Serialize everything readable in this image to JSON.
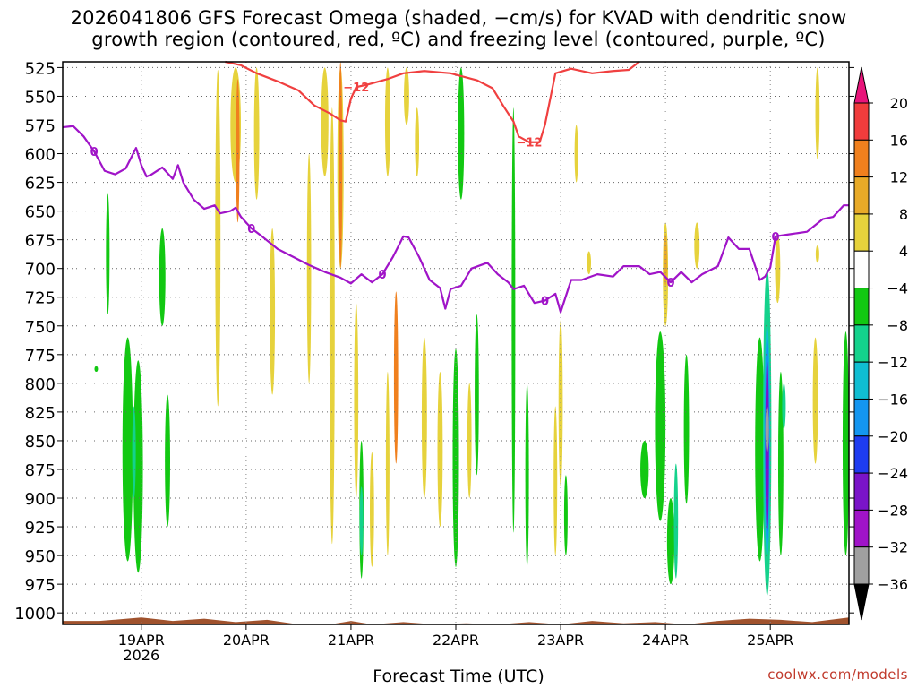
{
  "title": {
    "line1": "2026041806 GFS Forecast Omega (shaded, −cm/s) for KVAD with dendritic snow",
    "line2": "growth region (contoured, red, ºC) and freezing level (contoured, purple, ºC)"
  },
  "credit": "coolwx.com/models",
  "chart_data": {
    "type": "heatmap",
    "xlabel": "Forecast Time (UTC)",
    "x_ticks": [
      {
        "label": "19APR",
        "sublabel": "2026",
        "day": 1
      },
      {
        "label": "20APR",
        "sublabel": "",
        "day": 2
      },
      {
        "label": "21APR",
        "sublabel": "",
        "day": 3
      },
      {
        "label": "22APR",
        "sublabel": "",
        "day": 4
      },
      {
        "label": "23APR",
        "sublabel": "",
        "day": 5
      },
      {
        "label": "24APR",
        "sublabel": "",
        "day": 6
      },
      {
        "label": "25APR",
        "sublabel": "",
        "day": 7
      }
    ],
    "x_range_days": [
      0.25,
      7.75
    ],
    "y_axis": {
      "scale": "pressure (hPa)",
      "ticks": [
        525,
        550,
        575,
        600,
        625,
        650,
        675,
        700,
        725,
        750,
        775,
        800,
        825,
        850,
        875,
        900,
        925,
        950,
        975,
        1000
      ],
      "range": [
        520,
        1010
      ]
    },
    "grid": true,
    "colorbar": {
      "labels": [
        "20",
        "16",
        "12",
        "8",
        "4",
        "−4",
        "−8",
        "−12",
        "−16",
        "−20",
        "−24",
        "−28",
        "−32",
        "−36"
      ],
      "colors": [
        "#e8147a",
        "#f03c3c",
        "#f0801e",
        "#e8aa28",
        "#e6d23c",
        "#ffffff",
        "#12c812",
        "#14d28c",
        "#10bed2",
        "#1496f0",
        "#1e3cf0",
        "#7a14c8",
        "#a014c8",
        "#a0a0a0",
        "#000000"
      ]
    },
    "contour_labels": {
      "dgz": [
        "−12",
        "−12"
      ],
      "freezing": [
        "0",
        "0",
        "0",
        "0",
        "0",
        "0"
      ]
    },
    "dgz_line_color": "#f04040",
    "freezing_line_color": "#a014c8",
    "terrain_color": "#a0522d",
    "dgz_upper_boundary": {
      "day": [
        1.8,
        1.95,
        2.1,
        2.3,
        2.5,
        2.65,
        2.8,
        2.9,
        2.95,
        3.0,
        3.05,
        3.15,
        3.35,
        3.5,
        3.7,
        3.95,
        4.2,
        4.35,
        4.45,
        4.55,
        4.6,
        4.7,
        4.8,
        4.85,
        4.95,
        5.1,
        5.3,
        5.5,
        5.65,
        5.75
      ],
      "hPa": [
        520,
        523,
        530,
        537,
        545,
        558,
        565,
        571,
        572,
        552,
        542,
        540,
        535,
        530,
        528,
        530,
        536,
        543,
        558,
        572,
        585,
        590,
        590,
        575,
        530,
        526,
        530,
        528,
        527,
        520
      ]
    },
    "freezing_level": {
      "day": [
        0.25,
        0.35,
        0.45,
        0.55,
        0.65,
        0.75,
        0.85,
        0.95,
        1.0,
        1.05,
        1.1,
        1.2,
        1.3,
        1.35,
        1.4,
        1.5,
        1.6,
        1.7,
        1.75,
        1.85,
        1.9,
        1.95,
        2.05,
        2.15,
        2.3,
        2.45,
        2.6,
        2.75,
        2.9,
        3.0,
        3.1,
        3.2,
        3.3,
        3.4,
        3.5,
        3.55,
        3.65,
        3.75,
        3.85,
        3.9,
        3.95,
        4.05,
        4.15,
        4.3,
        4.4,
        4.5,
        4.55,
        4.65,
        4.75,
        4.85,
        4.95,
        5.0,
        5.1,
        5.2,
        5.35,
        5.5,
        5.6,
        5.75,
        5.85,
        5.95,
        6.05,
        6.15,
        6.25,
        6.35,
        6.5,
        6.6,
        6.7,
        6.8,
        6.9,
        6.95,
        7.0,
        7.05,
        7.2,
        7.35,
        7.5,
        7.6,
        7.7,
        7.75
      ],
      "hPa": [
        577,
        576,
        585,
        598,
        615,
        618,
        613,
        595,
        610,
        620,
        618,
        612,
        622,
        610,
        625,
        640,
        648,
        645,
        652,
        650,
        647,
        655,
        665,
        672,
        683,
        690,
        697,
        703,
        708,
        713,
        705,
        712,
        705,
        690,
        672,
        673,
        690,
        710,
        717,
        735,
        718,
        715,
        700,
        695,
        705,
        712,
        718,
        715,
        730,
        728,
        722,
        738,
        710,
        710,
        705,
        707,
        698,
        698,
        705,
        703,
        712,
        703,
        712,
        705,
        698,
        673,
        683,
        683,
        710,
        707,
        699,
        672,
        670,
        668,
        657,
        655,
        645,
        645
      ]
    },
    "terrain_top_hPa": {
      "day": [
        0.25,
        0.6,
        1.0,
        1.3,
        1.6,
        1.9,
        2.2,
        2.5,
        2.8,
        3.0,
        3.2,
        3.5,
        3.8,
        4.1,
        4.4,
        4.7,
        5.0,
        5.3,
        5.6,
        5.9,
        6.2,
        6.5,
        6.8,
        7.1,
        7.4,
        7.75
      ],
      "hPa": [
        1007,
        1007,
        1004,
        1007,
        1005,
        1008,
        1006,
        1010,
        1010,
        1007,
        1010,
        1008,
        1010,
        1009,
        1010,
        1008,
        1010,
        1007,
        1009,
        1008,
        1010,
        1007,
        1005,
        1006,
        1008,
        1004
      ]
    },
    "omega_regions": [
      {
        "d": 0.57,
        "p1": 785,
        "p2": 790,
        "w": 0.02,
        "c": 6
      },
      {
        "d": 0.68,
        "p1": 635,
        "p2": 740,
        "w": 0.03,
        "c": 6
      },
      {
        "d": 0.87,
        "p1": 760,
        "p2": 955,
        "w": 0.1,
        "c": 6
      },
      {
        "d": 0.97,
        "p1": 780,
        "p2": 965,
        "w": 0.09,
        "c": 6
      },
      {
        "d": 0.93,
        "p1": 820,
        "p2": 900,
        "w": 0.03,
        "c": 7
      },
      {
        "d": 1.2,
        "p1": 665,
        "p2": 750,
        "w": 0.06,
        "c": 6
      },
      {
        "d": 1.25,
        "p1": 810,
        "p2": 925,
        "w": 0.05,
        "c": 6
      },
      {
        "d": 1.73,
        "p1": 527,
        "p2": 820,
        "w": 0.05,
        "c": 4
      },
      {
        "d": 1.9,
        "p1": 525,
        "p2": 625,
        "w": 0.1,
        "c": 4
      },
      {
        "d": 1.92,
        "p1": 535,
        "p2": 660,
        "w": 0.03,
        "c": 2
      },
      {
        "d": 2.1,
        "p1": 525,
        "p2": 640,
        "w": 0.05,
        "c": 4
      },
      {
        "d": 2.25,
        "p1": 665,
        "p2": 810,
        "w": 0.05,
        "c": 4
      },
      {
        "d": 2.6,
        "p1": 600,
        "p2": 800,
        "w": 0.04,
        "c": 4
      },
      {
        "d": 2.75,
        "p1": 525,
        "p2": 620,
        "w": 0.07,
        "c": 4
      },
      {
        "d": 2.82,
        "p1": 560,
        "p2": 940,
        "w": 0.05,
        "c": 4
      },
      {
        "d": 2.9,
        "p1": 525,
        "p2": 700,
        "w": 0.06,
        "c": 4
      },
      {
        "d": 2.9,
        "p1": 520,
        "p2": 700,
        "w": 0.02,
        "c": 2
      },
      {
        "d": 3.05,
        "p1": 730,
        "p2": 900,
        "w": 0.04,
        "c": 4
      },
      {
        "d": 3.1,
        "p1": 850,
        "p2": 970,
        "w": 0.04,
        "c": 6
      },
      {
        "d": 3.1,
        "p1": 890,
        "p2": 950,
        "w": 0.02,
        "c": 7
      },
      {
        "d": 3.2,
        "p1": 860,
        "p2": 960,
        "w": 0.04,
        "c": 4
      },
      {
        "d": 3.35,
        "p1": 525,
        "p2": 620,
        "w": 0.05,
        "c": 4
      },
      {
        "d": 3.35,
        "p1": 790,
        "p2": 950,
        "w": 0.03,
        "c": 4
      },
      {
        "d": 3.43,
        "p1": 720,
        "p2": 870,
        "w": 0.04,
        "c": 2
      },
      {
        "d": 3.53,
        "p1": 525,
        "p2": 575,
        "w": 0.05,
        "c": 4
      },
      {
        "d": 3.63,
        "p1": 560,
        "p2": 620,
        "w": 0.04,
        "c": 4
      },
      {
        "d": 3.7,
        "p1": 760,
        "p2": 900,
        "w": 0.05,
        "c": 4
      },
      {
        "d": 3.85,
        "p1": 790,
        "p2": 925,
        "w": 0.05,
        "c": 4
      },
      {
        "d": 4.0,
        "p1": 770,
        "p2": 960,
        "w": 0.06,
        "c": 6
      },
      {
        "d": 4.05,
        "p1": 525,
        "p2": 640,
        "w": 0.06,
        "c": 6
      },
      {
        "d": 4.13,
        "p1": 800,
        "p2": 900,
        "w": 0.04,
        "c": 4
      },
      {
        "d": 4.2,
        "p1": 740,
        "p2": 880,
        "w": 0.04,
        "c": 6
      },
      {
        "d": 4.55,
        "p1": 560,
        "p2": 930,
        "w": 0.03,
        "c": 6
      },
      {
        "d": 4.68,
        "p1": 800,
        "p2": 960,
        "w": 0.03,
        "c": 6
      },
      {
        "d": 4.95,
        "p1": 820,
        "p2": 950,
        "w": 0.03,
        "c": 4
      },
      {
        "d": 5.0,
        "p1": 745,
        "p2": 890,
        "w": 0.04,
        "c": 4
      },
      {
        "d": 5.05,
        "p1": 880,
        "p2": 950,
        "w": 0.03,
        "c": 6
      },
      {
        "d": 5.15,
        "p1": 575,
        "p2": 625,
        "w": 0.03,
        "c": 4
      },
      {
        "d": 5.27,
        "p1": 685,
        "p2": 705,
        "w": 0.04,
        "c": 4
      },
      {
        "d": 5.8,
        "p1": 850,
        "p2": 900,
        "w": 0.08,
        "c": 6
      },
      {
        "d": 5.95,
        "p1": 755,
        "p2": 920,
        "w": 0.1,
        "c": 6
      },
      {
        "d": 6.05,
        "p1": 900,
        "p2": 975,
        "w": 0.07,
        "c": 6
      },
      {
        "d": 6.0,
        "p1": 660,
        "p2": 750,
        "w": 0.05,
        "c": 4
      },
      {
        "d": 6.0,
        "p1": 670,
        "p2": 715,
        "w": 0.03,
        "c": 3
      },
      {
        "d": 6.1,
        "p1": 870,
        "p2": 970,
        "w": 0.04,
        "c": 7
      },
      {
        "d": 6.2,
        "p1": 775,
        "p2": 905,
        "w": 0.05,
        "c": 6
      },
      {
        "d": 6.3,
        "p1": 660,
        "p2": 700,
        "w": 0.05,
        "c": 4
      },
      {
        "d": 6.9,
        "p1": 760,
        "p2": 955,
        "w": 0.09,
        "c": 6
      },
      {
        "d": 6.97,
        "p1": 700,
        "p2": 985,
        "w": 0.08,
        "c": 7
      },
      {
        "d": 6.97,
        "p1": 750,
        "p2": 950,
        "w": 0.06,
        "c": 8
      },
      {
        "d": 6.97,
        "p1": 760,
        "p2": 940,
        "w": 0.045,
        "c": 9
      },
      {
        "d": 6.97,
        "p1": 780,
        "p2": 930,
        "w": 0.025,
        "c": 11
      },
      {
        "d": 6.97,
        "p1": 820,
        "p2": 860,
        "w": 0.012,
        "c": 13
      },
      {
        "d": 7.1,
        "p1": 790,
        "p2": 950,
        "w": 0.05,
        "c": 6
      },
      {
        "d": 7.13,
        "p1": 800,
        "p2": 840,
        "w": 0.03,
        "c": 7
      },
      {
        "d": 7.07,
        "p1": 670,
        "p2": 730,
        "w": 0.05,
        "c": 4
      },
      {
        "d": 7.45,
        "p1": 525,
        "p2": 605,
        "w": 0.04,
        "c": 4
      },
      {
        "d": 7.43,
        "p1": 760,
        "p2": 870,
        "w": 0.05,
        "c": 4
      },
      {
        "d": 7.45,
        "p1": 680,
        "p2": 695,
        "w": 0.03,
        "c": 4
      },
      {
        "d": 7.72,
        "p1": 755,
        "p2": 950,
        "w": 0.06,
        "c": 6
      }
    ]
  }
}
